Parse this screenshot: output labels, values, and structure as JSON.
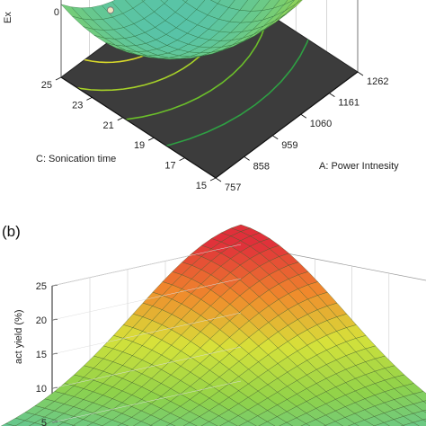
{
  "chart_data": [
    {
      "type": "surface",
      "panel_label": "",
      "x_axis": {
        "label": "A: Power Intnesity",
        "ticks": [
          "757",
          "858",
          "959",
          "1060",
          "1161",
          "1262"
        ],
        "range": [
          757,
          1262
        ]
      },
      "y_axis": {
        "label": "C: Sonication time",
        "ticks": [
          "15",
          "17",
          "19",
          "21",
          "23",
          "25"
        ],
        "range": [
          15,
          25
        ]
      },
      "z_axis": {
        "label": "Ex",
        "ticks": [
          "0"
        ]
      },
      "floor_contours": {
        "levels": 6,
        "colors": [
          "#2ea043",
          "#6bbf2a",
          "#a7d228",
          "#d8d92a",
          "#e8e23a"
        ]
      },
      "design_point": {
        "x": 1009.5,
        "y": 20
      },
      "colors": {
        "floor": "#3c3c3c",
        "surface_low": "#57c3a9",
        "surface_mid": "#b9dc3b",
        "surface_high": "#e0303a",
        "marker": "#f2e2c0"
      }
    },
    {
      "type": "surface",
      "panel_label": "(b)",
      "z_axis": {
        "label": "act yield (%)",
        "ticks": [
          "5",
          "10",
          "15",
          "20",
          "25"
        ],
        "range": [
          5,
          25
        ]
      },
      "colors": {
        "surface_low": "#57c3a9",
        "surface_mid": "#d7e23a",
        "surface_high": "#e0303a"
      }
    }
  ]
}
